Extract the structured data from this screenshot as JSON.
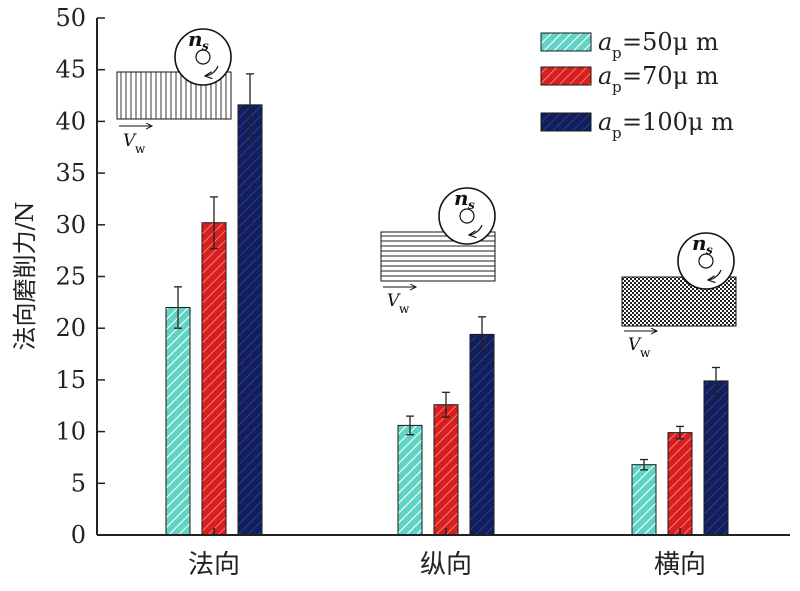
{
  "chart_data": {
    "type": "bar",
    "title": "",
    "xlabel": "",
    "ylabel": "法向磨削力/N",
    "ylim": [
      0,
      50
    ],
    "yticks": [
      0,
      5,
      10,
      15,
      20,
      25,
      30,
      35,
      40,
      45,
      50
    ],
    "categories": [
      "法向",
      "纵向",
      "横向"
    ],
    "series": [
      {
        "name": "ap=50μm",
        "legend_var": "a",
        "legend_sub": "p",
        "legend_rest": "=50μ m",
        "color": "#5fd3c4",
        "values": [
          22.0,
          10.6,
          6.8
        ],
        "errors": [
          2.0,
          0.9,
          0.5
        ]
      },
      {
        "name": "ap=70μm",
        "legend_var": "a",
        "legend_sub": "p",
        "legend_rest": "=70μ m",
        "color": "#d81e1e",
        "values": [
          30.2,
          12.6,
          9.9
        ],
        "errors": [
          2.5,
          1.2,
          0.6
        ]
      },
      {
        "name": "ap=100μm",
        "legend_var": "a",
        "legend_sub": "p",
        "legend_rest": "=100μ m",
        "color": "#121e5e",
        "values": [
          41.6,
          19.4,
          14.9
        ],
        "errors": [
          3.0,
          1.7,
          1.3
        ]
      }
    ],
    "legend_position": "top-right",
    "grid": false,
    "annotations": {
      "wheel_label": "n",
      "wheel_sub": "s",
      "feed_label": "V",
      "feed_sub": "w"
    }
  }
}
